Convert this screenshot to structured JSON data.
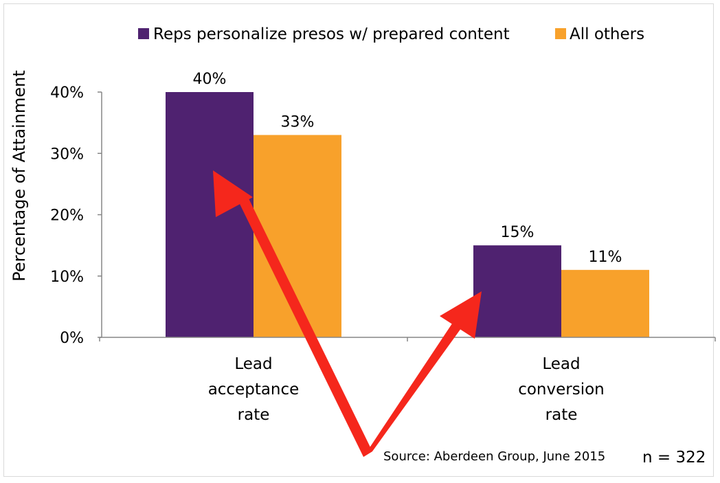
{
  "chart_data": {
    "type": "bar",
    "categories": [
      [
        "Lead",
        "acceptance",
        "rate"
      ],
      [
        "Lead",
        "conversion",
        "rate"
      ]
    ],
    "series": [
      {
        "name": "Reps personalize presos w/ prepared content",
        "values": [
          40,
          15
        ],
        "labels": [
          "40%",
          "15%"
        ],
        "color": "#4f2270"
      },
      {
        "name": "All others",
        "values": [
          33,
          11
        ],
        "labels": [
          "33%",
          "11%"
        ],
        "color": "#f8a12b"
      }
    ],
    "ylabel": "Percentage of Attainment",
    "ylim": [
      0,
      40
    ],
    "yticks": [
      0,
      10,
      20,
      30,
      40
    ],
    "ytick_labels": [
      "0%",
      "10%",
      "20%",
      "30%",
      "40%"
    ],
    "grid": false,
    "legend_position": "top",
    "annotations": {
      "source": "Source: Aberdeen Group, June 2015",
      "sample_size": "n = 322",
      "arrow_color": "#f5271c"
    }
  }
}
